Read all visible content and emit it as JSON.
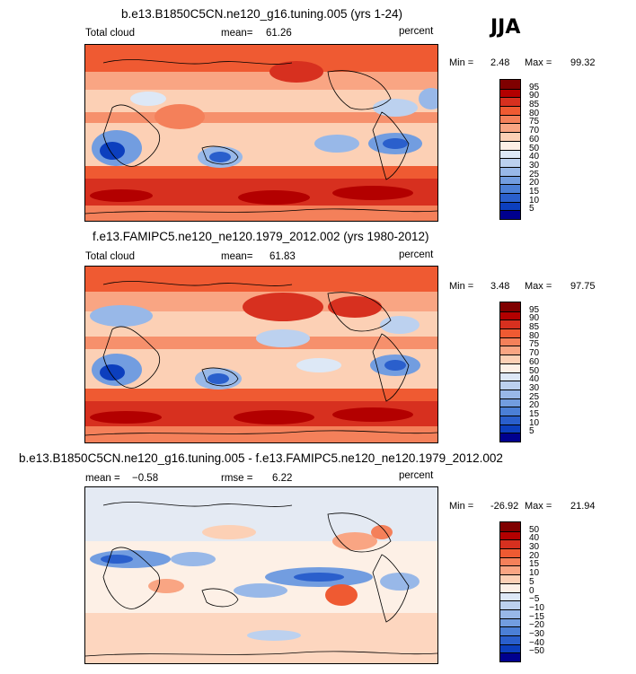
{
  "season": "JJA",
  "panels": [
    {
      "title": "b.e13.B1850C5CN.ne120_g16.tuning.005 (yrs 1-24)",
      "left_label": "Total cloud",
      "stat_label": "mean=",
      "stat_value": "61.26",
      "units": "percent",
      "min_label": "Min =",
      "min_value": "2.48",
      "max_label": "Max =",
      "max_value": "99.32",
      "levels": [
        "95",
        "90",
        "85",
        "80",
        "75",
        "70",
        "60",
        "50",
        "40",
        "30",
        "25",
        "20",
        "15",
        "10",
        "5"
      ],
      "colors": [
        "#7f0000",
        "#b30000",
        "#d7301f",
        "#ef5a32",
        "#f4805a",
        "#f9a583",
        "#fcd0b5",
        "#fdf0e6",
        "#dde8f6",
        "#bcd1ef",
        "#98b8e8",
        "#729de0",
        "#4b7fd6",
        "#2a5fcc",
        "#0c3fbe",
        "#00008f"
      ]
    },
    {
      "title": "f.e13.FAMIPC5.ne120_ne120.1979_2012.002 (yrs 1980-2012)",
      "left_label": "Total cloud",
      "stat_label": "mean=",
      "stat_value": "61.83",
      "units": "percent",
      "min_label": "Min =",
      "min_value": "3.48",
      "max_label": "Max =",
      "max_value": "97.75",
      "levels": [
        "95",
        "90",
        "85",
        "80",
        "75",
        "70",
        "60",
        "50",
        "40",
        "30",
        "25",
        "20",
        "15",
        "10",
        "5"
      ],
      "colors": [
        "#7f0000",
        "#b30000",
        "#d7301f",
        "#ef5a32",
        "#f4805a",
        "#f9a583",
        "#fcd0b5",
        "#fdf0e6",
        "#dde8f6",
        "#bcd1ef",
        "#98b8e8",
        "#729de0",
        "#4b7fd6",
        "#2a5fcc",
        "#0c3fbe",
        "#00008f"
      ]
    },
    {
      "title": "b.e13.B1850C5CN.ne120_g16.tuning.005 - f.e13.FAMIPC5.ne120_ne120.1979_2012.002",
      "left_label": "mean =",
      "left_value": "−0.58",
      "stat_label": "rmse =",
      "stat_value": "6.22",
      "units": "percent",
      "min_label": "Min =",
      "min_value": "-26.92",
      "max_label": "Max =",
      "max_value": "21.94",
      "levels": [
        "50",
        "40",
        "30",
        "20",
        "15",
        "10",
        "5",
        "0",
        "−5",
        "−10",
        "−15",
        "−20",
        "−30",
        "−40",
        "−50"
      ],
      "colors": [
        "#7f0000",
        "#b30000",
        "#d7301f",
        "#ef5a32",
        "#f4805a",
        "#f9a583",
        "#fcd0b5",
        "#fdf0e6",
        "#dde8f6",
        "#bcd1ef",
        "#98b8e8",
        "#729de0",
        "#4b7fd6",
        "#2a5fcc",
        "#0c3fbe",
        "#00008f"
      ]
    }
  ]
}
